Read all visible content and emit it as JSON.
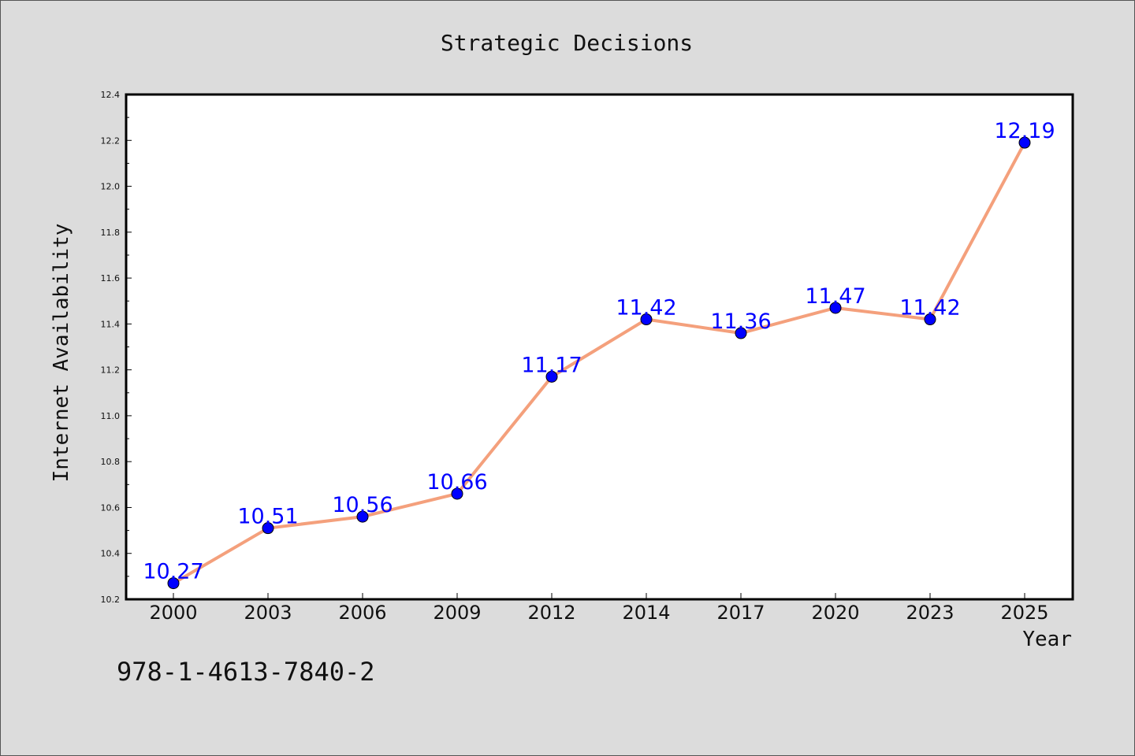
{
  "chart_data": {
    "type": "line",
    "title": "Strategic Decisions",
    "xlabel": "Year",
    "ylabel": "Internet Availability",
    "categories": [
      "2000",
      "2003",
      "2006",
      "2009",
      "2012",
      "2014",
      "2017",
      "2020",
      "2023",
      "2025"
    ],
    "series": [
      {
        "values": [
          10.27,
          10.51,
          10.56,
          10.66,
          11.17,
          11.42,
          11.36,
          11.47,
          11.42,
          12.19
        ]
      }
    ],
    "ylim": [
      10.2,
      12.4
    ],
    "yticks": [
      "10.2",
      "10.4",
      "10.6",
      "10.8",
      "11.0",
      "11.2",
      "11.4",
      "11.6",
      "11.8",
      "12.0",
      "12.2",
      "12.4"
    ],
    "ytick_values": [
      10.2,
      10.4,
      10.6,
      10.8,
      11.0,
      11.2,
      11.4,
      11.6,
      11.8,
      12.0,
      12.2,
      12.4
    ],
    "data_labels": [
      "10.27",
      "10.51",
      "10.56",
      "10.66",
      "11.17",
      "11.42",
      "11.36",
      "11.47",
      "11.42",
      "12.19"
    ],
    "grid": false,
    "line_color": "#f4a07c",
    "marker_color": "#0000ff",
    "label_color": "#0000ff",
    "plot_background": "#ffffff",
    "figure_background": "#dcdcdc"
  },
  "footer": {
    "isbn": "978-1-4613-7840-2"
  }
}
